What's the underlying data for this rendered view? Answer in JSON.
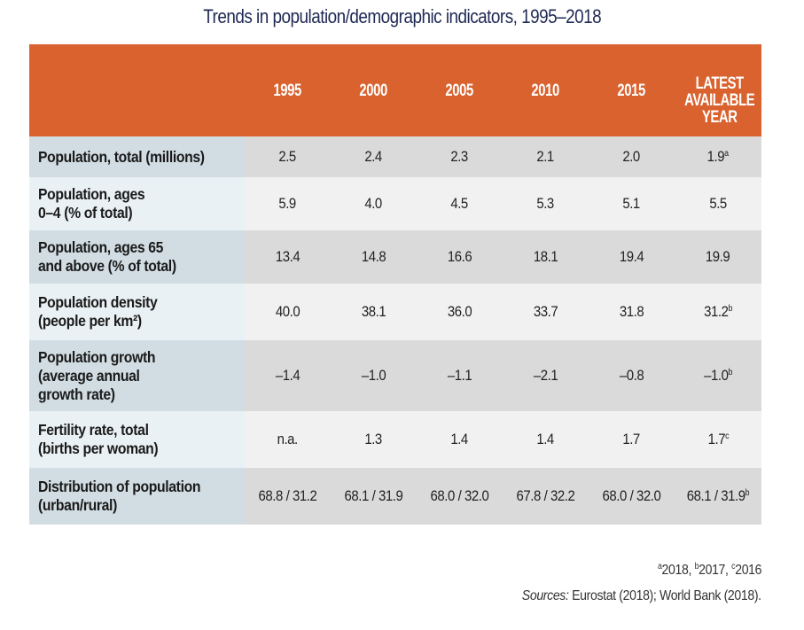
{
  "title": "Trends in population/demographic indicators, 1995–2018",
  "table": {
    "columns": [
      "",
      "1995",
      "2000",
      "2005",
      "2010",
      "2015",
      "LATEST AVAILABLE YEAR"
    ],
    "latest_header_lines": [
      "LATEST",
      "AVAILABLE",
      "YEAR"
    ],
    "rows": [
      {
        "label_lines": [
          "Population, total (millions)"
        ],
        "values": [
          "2.5",
          "2.4",
          "2.3",
          "2.1",
          "2.0",
          "1.9"
        ],
        "latest_note": "a"
      },
      {
        "label_lines": [
          "Population, ages",
          "0–4 (% of total)"
        ],
        "values": [
          "5.9",
          "4.0",
          "4.5",
          "5.3",
          "5.1",
          "5.5"
        ],
        "latest_note": ""
      },
      {
        "label_lines": [
          "Population, ages 65",
          "and above (% of total)"
        ],
        "values": [
          "13.4",
          "14.8",
          "16.6",
          "18.1",
          "19.4",
          "19.9"
        ],
        "latest_note": ""
      },
      {
        "label_lines": [
          "Population density",
          "(people per km²)"
        ],
        "values": [
          "40.0",
          "38.1",
          "36.0",
          "33.7",
          "31.8",
          "31.2"
        ],
        "latest_note": "b"
      },
      {
        "label_lines": [
          "Population growth",
          "(average annual",
          "growth rate)"
        ],
        "values": [
          "–1.4",
          "–1.0",
          "–1.1",
          "–2.1",
          "–0.8",
          "–1.0"
        ],
        "latest_note": "b"
      },
      {
        "label_lines": [
          "Fertility rate, total",
          "(births per woman)"
        ],
        "values": [
          "n.a.",
          "1.3",
          "1.4",
          "1.4",
          "1.7",
          "1.7"
        ],
        "latest_note": "c"
      },
      {
        "label_lines": [
          "Distribution of population",
          "(urban/rural)"
        ],
        "values": [
          "68.8 / 31.2",
          "68.1 / 31.9",
          "68.0 / 32.0",
          "67.8 / 32.2",
          "68.0 / 32.0",
          "68.1 / 31.9"
        ],
        "latest_note": "b"
      }
    ]
  },
  "footnote": {
    "parts": [
      {
        "sup": "a",
        "text": "2018, "
      },
      {
        "sup": "b",
        "text": "2017, "
      },
      {
        "sup": "c",
        "text": "2016"
      }
    ]
  },
  "sources": {
    "label": "Sources:",
    "text": " Eurostat (2018); World Bank (2018)."
  },
  "colors": {
    "header_bg": "#d9622f",
    "title": "#1f2a55",
    "label_dark": "#d2dde3",
    "label_light": "#eaf1f4",
    "value_dark": "#dadada",
    "value_light": "#f1f1f1"
  }
}
